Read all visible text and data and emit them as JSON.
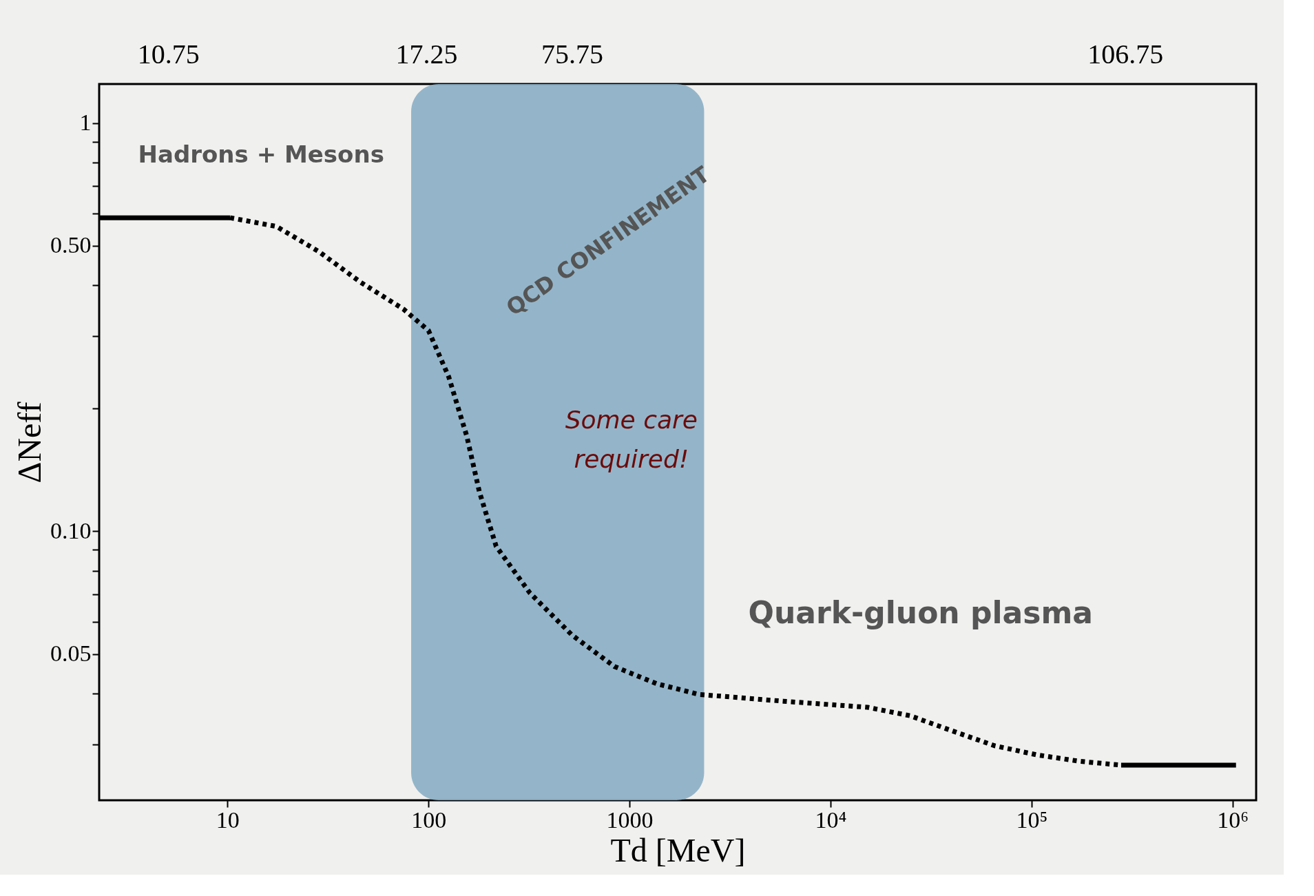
{
  "chart_data": {
    "type": "line",
    "xlabel": "Td [MeV]",
    "ylabel": "ΔNeff",
    "log": "xy",
    "xlim": [
      2.3,
      1310000
    ],
    "ylim": [
      0.0219,
      1.246
    ],
    "xticks": [
      {
        "value": 10,
        "label": "10"
      },
      {
        "value": 100,
        "label": "100"
      },
      {
        "value": 1000,
        "label": "1000"
      },
      {
        "value": 10000,
        "label": "10⁴"
      },
      {
        "value": 100000,
        "label": "10⁵"
      },
      {
        "value": 1000000,
        "label": "10⁶"
      }
    ],
    "yticks": [
      {
        "value": 1,
        "label": "1"
      },
      {
        "value": 0.5,
        "label": "0.50"
      },
      {
        "value": 0.1,
        "label": "0.10"
      },
      {
        "value": 0.05,
        "label": "0.05"
      },
      {
        "value": 0.03,
        "label": null
      },
      {
        "value": 0.04,
        "label": null
      },
      {
        "value": 0.06,
        "label": null
      },
      {
        "value": 0.07,
        "label": null
      },
      {
        "value": 0.08,
        "label": null
      },
      {
        "value": 0.09,
        "label": null
      },
      {
        "value": 0.2,
        "label": null
      },
      {
        "value": 0.3,
        "label": null
      },
      {
        "value": 0.4,
        "label": null
      },
      {
        "value": 0.6,
        "label": null
      },
      {
        "value": 0.7,
        "label": null
      },
      {
        "value": 0.8,
        "label": null
      },
      {
        "value": 0.9,
        "label": null
      }
    ],
    "grid": false,
    "marker": "none",
    "bands": [
      {
        "axis": "x",
        "from": 82,
        "to": 2350,
        "color": "#8aaec4"
      }
    ],
    "series": [
      {
        "color": "#000000",
        "line_style": "solid",
        "x": [
          2.3,
          10.3
        ],
        "values": [
          0.586,
          0.586
        ]
      },
      {
        "color": "#000000",
        "line_style": "dotted",
        "x": [
          10.3,
          17.5,
          28.5,
          46,
          75,
          100,
          126,
          155,
          179,
          217,
          319,
          518,
          840,
          1360,
          2210,
          5820,
          15300,
          24800,
          40300,
          65300,
          106000,
          172000,
          279000
        ],
        "values": [
          0.586,
          0.558,
          0.484,
          0.407,
          0.35,
          0.31,
          0.239,
          0.171,
          0.125,
          0.0918,
          0.0706,
          0.0556,
          0.0466,
          0.0423,
          0.0398,
          0.0383,
          0.037,
          0.0353,
          0.0324,
          0.0298,
          0.0283,
          0.0273,
          0.0267
        ]
      },
      {
        "color": "#000000",
        "line_style": "solid",
        "x": [
          279000,
          1040000
        ],
        "values": [
          0.0267,
          0.0267
        ]
      }
    ],
    "annotations": [
      "Hadrons + Mesons",
      "QCD CONFINEMENT",
      "Some care required!",
      "Quark-gluon plasma",
      "10.75",
      "17.25",
      "75.75",
      "106.75"
    ]
  }
}
